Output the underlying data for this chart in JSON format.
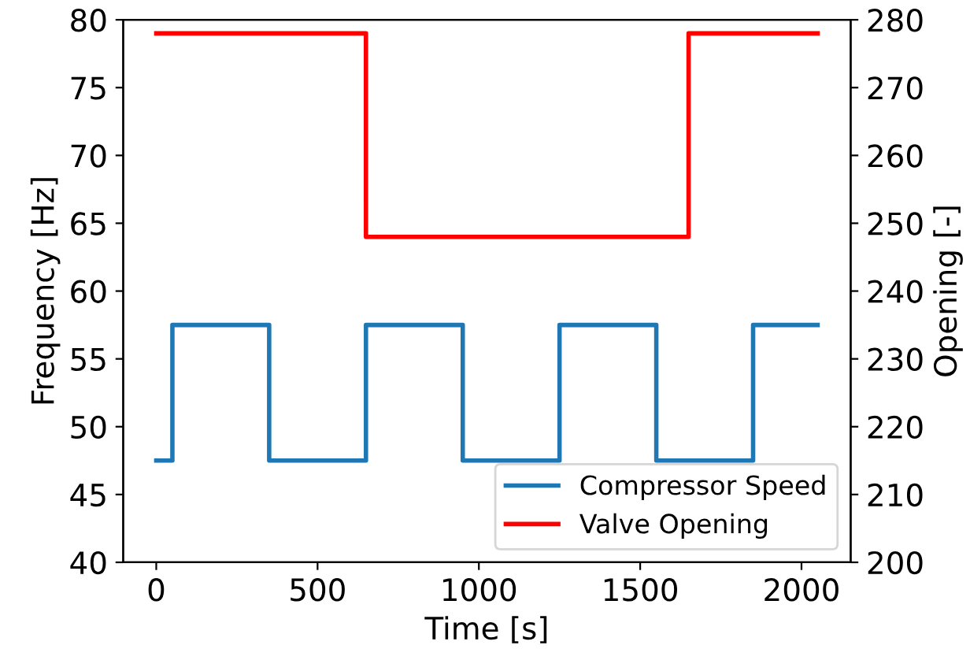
{
  "chart_data": {
    "type": "step",
    "xlabel": "Time [s]",
    "ylabel": "Frequency [Hz]",
    "y2label": "Opening [-]",
    "series": [
      {
        "name": "Compressor Speed",
        "color": "#1f77b4",
        "x": [
          0,
          50,
          350,
          650,
          950,
          1250,
          1550,
          1850,
          2050
        ],
        "values": [
          47.5,
          57.5,
          47.5,
          57.5,
          47.5,
          57.5,
          47.5,
          57.5,
          57.5
        ]
      },
      {
        "name": "Valve Opening",
        "color": "#ff0000",
        "axis": "y2",
        "x": [
          0,
          650,
          1650,
          2050
        ],
        "values": [
          278,
          248,
          278,
          278
        ]
      }
    ],
    "xlim": [
      -102.5,
      2152.5
    ],
    "xticks": [
      0,
      500,
      1000,
      1500,
      2000
    ],
    "ylim": [
      40,
      80
    ],
    "yticks": [
      40,
      45,
      50,
      55,
      60,
      65,
      70,
      75,
      80
    ],
    "y2lim": [
      200,
      280
    ],
    "y2ticks": [
      200,
      210,
      220,
      230,
      240,
      250,
      260,
      270,
      280
    ],
    "legend": "bottom right",
    "grid": false
  }
}
